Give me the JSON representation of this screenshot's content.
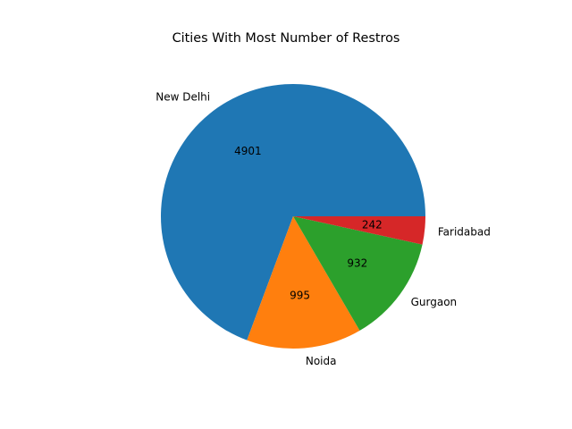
{
  "chart_data": {
    "type": "pie",
    "title": "Cities With Most Number of Restros",
    "categories": [
      "New Delhi",
      "Noida",
      "Gurgaon",
      "Faridabad"
    ],
    "values": [
      4901,
      995,
      932,
      242
    ],
    "value_labels": [
      "4901",
      "995",
      "932",
      "242"
    ],
    "colors": [
      "#1f77b4",
      "#ff7f0e",
      "#2ca02c",
      "#d62728"
    ],
    "start_angle_deg": 0,
    "direction": "counterclockwise",
    "legend": "none"
  }
}
